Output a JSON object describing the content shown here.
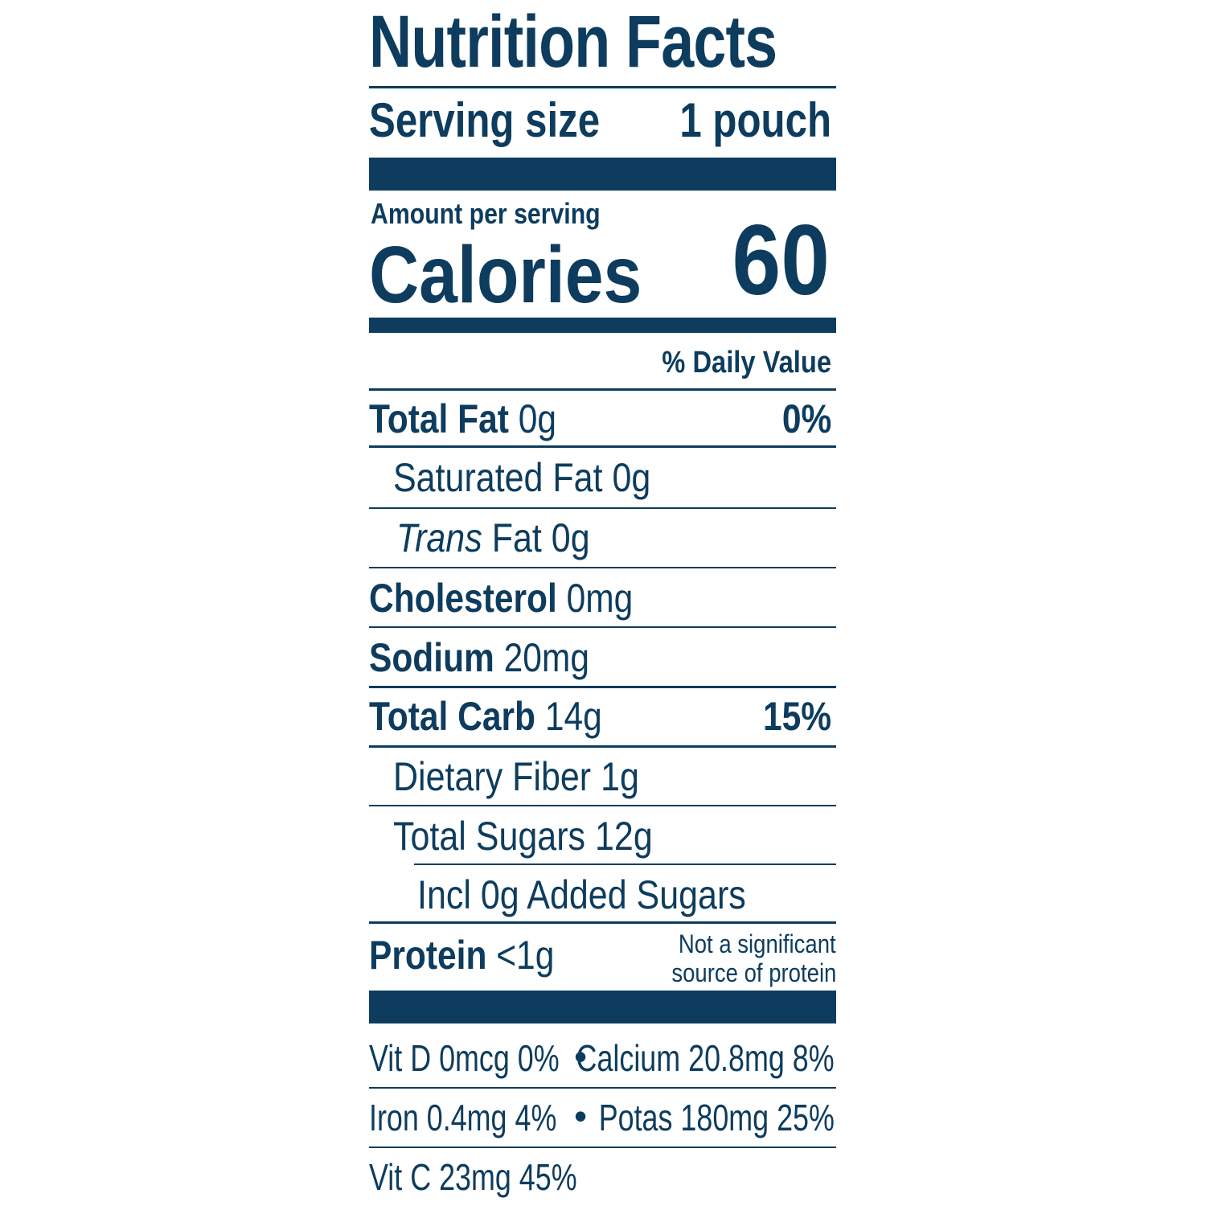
{
  "colors": {
    "ink": "#0d3c5e",
    "background": "#ffffff"
  },
  "title": "Nutrition Facts",
  "serving": {
    "label": "Serving size",
    "value": "1 pouch"
  },
  "amount_per_serving": "Amount per serving",
  "calories": {
    "label": "Calories",
    "value": "60"
  },
  "daily_value_header": "% Daily Value",
  "nutrients": {
    "total_fat": {
      "name": "Total Fat",
      "amount": "0g",
      "dv": "0%"
    },
    "saturated_fat": {
      "name": "Saturated Fat",
      "amount": "0g"
    },
    "trans_fat": {
      "name_italic": "Trans",
      "name_rest": "Fat",
      "amount": "0g"
    },
    "cholesterol": {
      "name": "Cholesterol",
      "amount": "0mg"
    },
    "sodium": {
      "name": "Sodium",
      "amount": "20mg"
    },
    "total_carb": {
      "name": "Total Carb",
      "amount": "14g",
      "dv": "15%"
    },
    "dietary_fiber": {
      "name": "Dietary Fiber",
      "amount": "1g"
    },
    "total_sugars": {
      "name": "Total Sugars",
      "amount": "12g"
    },
    "added_sugars": {
      "text": "Incl 0g Added Sugars"
    },
    "protein": {
      "name": "Protein",
      "amount": "<1g",
      "note_line1": "Not a significant",
      "note_line2": "source of protein"
    }
  },
  "micronutrients": {
    "row1": {
      "left": "Vit D 0mcg 0%",
      "bullet": "•",
      "right": "Calcium 20.8mg 8%"
    },
    "row2": {
      "left": "Iron 0.4mg 4%",
      "bullet": "•",
      "right": "Potas 180mg 25%"
    },
    "row3": {
      "left": "Vit C 23mg 45%"
    }
  }
}
